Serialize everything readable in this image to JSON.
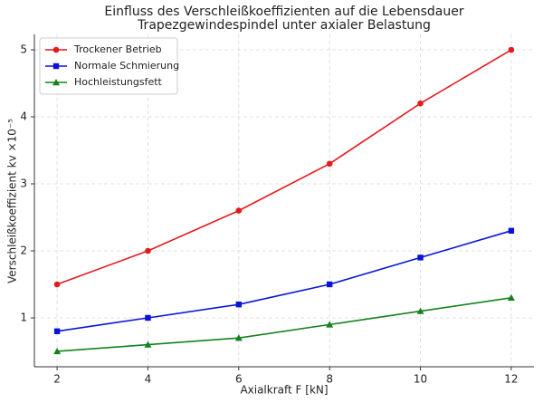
{
  "chart_data": {
    "type": "line",
    "title": [
      "Einfluss des Verschleißkoeffizienten auf die Lebensdauer",
      "Trapezgewindespindel unter axialer Belastung"
    ],
    "xlabel": "Axialkraft F [kN]",
    "ylabel": "Verschleißkoeffizient kv ×10⁻⁵",
    "x": [
      2,
      4,
      6,
      8,
      10,
      12
    ],
    "series": [
      {
        "name": "Trockener Betrieb",
        "color": "#e41a1c",
        "marker": "circle",
        "values": [
          1.5,
          2.0,
          2.6,
          3.3,
          4.2,
          5.0
        ]
      },
      {
        "name": "Normale Schmierung",
        "color": "#0a14d8",
        "marker": "square",
        "values": [
          0.8,
          1.0,
          1.2,
          1.5,
          1.9,
          2.3
        ]
      },
      {
        "name": "Hochleistungsfett",
        "color": "#14821e",
        "marker": "triangle",
        "values": [
          0.5,
          0.6,
          0.7,
          0.9,
          1.1,
          1.3
        ]
      }
    ],
    "xlim": [
      1.5,
      12.5
    ],
    "ylim": [
      0.27,
      5.23
    ],
    "xticks": [
      2,
      4,
      6,
      8,
      10,
      12
    ],
    "yticks": [
      1,
      2,
      3,
      4,
      5
    ],
    "grid": true,
    "legend": "upper-left"
  }
}
